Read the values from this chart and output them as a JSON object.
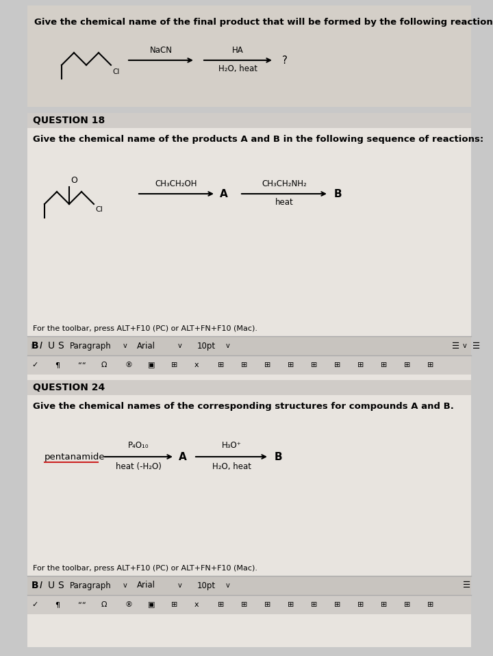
{
  "bg_outer": "#c8c8c8",
  "bg_section1": "#d4cfc8",
  "bg_section2": "#e8e4df",
  "bg_section3": "#e8e4df",
  "bg_toolbar": "#d0ccc8",
  "section1": {
    "title": "Give the chemical name of the final product that will be formed by the following reaction:",
    "reagent1": "NaCN",
    "reagent2": "HA",
    "reagent3": "H₂O, heat",
    "product": "?"
  },
  "section2": {
    "question_label": "QUESTION 18",
    "title": "Give the chemical name of the products A and B in the following sequence of reactions:",
    "reagent1": "CH₃CH₂OH",
    "intermediate": "A",
    "reagent2": "CH₃CH₂NH₂",
    "reagent3": "heat",
    "product": "B",
    "toolbar_text": "For the toolbar, press ALT+F10 (PC) or ALT+FN+F10 (Mac).",
    "ci_label": "Cl"
  },
  "section3": {
    "question_label": "QUESTION 24",
    "title": "Give the chemical names of the corresponding structures for compounds A and B.",
    "reactant": "pentanamide",
    "reagent1_top": "P₄O₁₀",
    "reagent1_bot": "heat (-H₂O)",
    "intermediate": "A",
    "reagent2_top": "H₃O⁺",
    "reagent2_bot": "H₂O, heat",
    "product": "B",
    "toolbar_text": "For the toolbar, press ALT+F10 (PC) or ALT+FN+F10 (Mac)."
  },
  "font_title": 9.5,
  "font_question": 10,
  "font_body": 9,
  "font_small": 8,
  "font_toolbar": 8
}
